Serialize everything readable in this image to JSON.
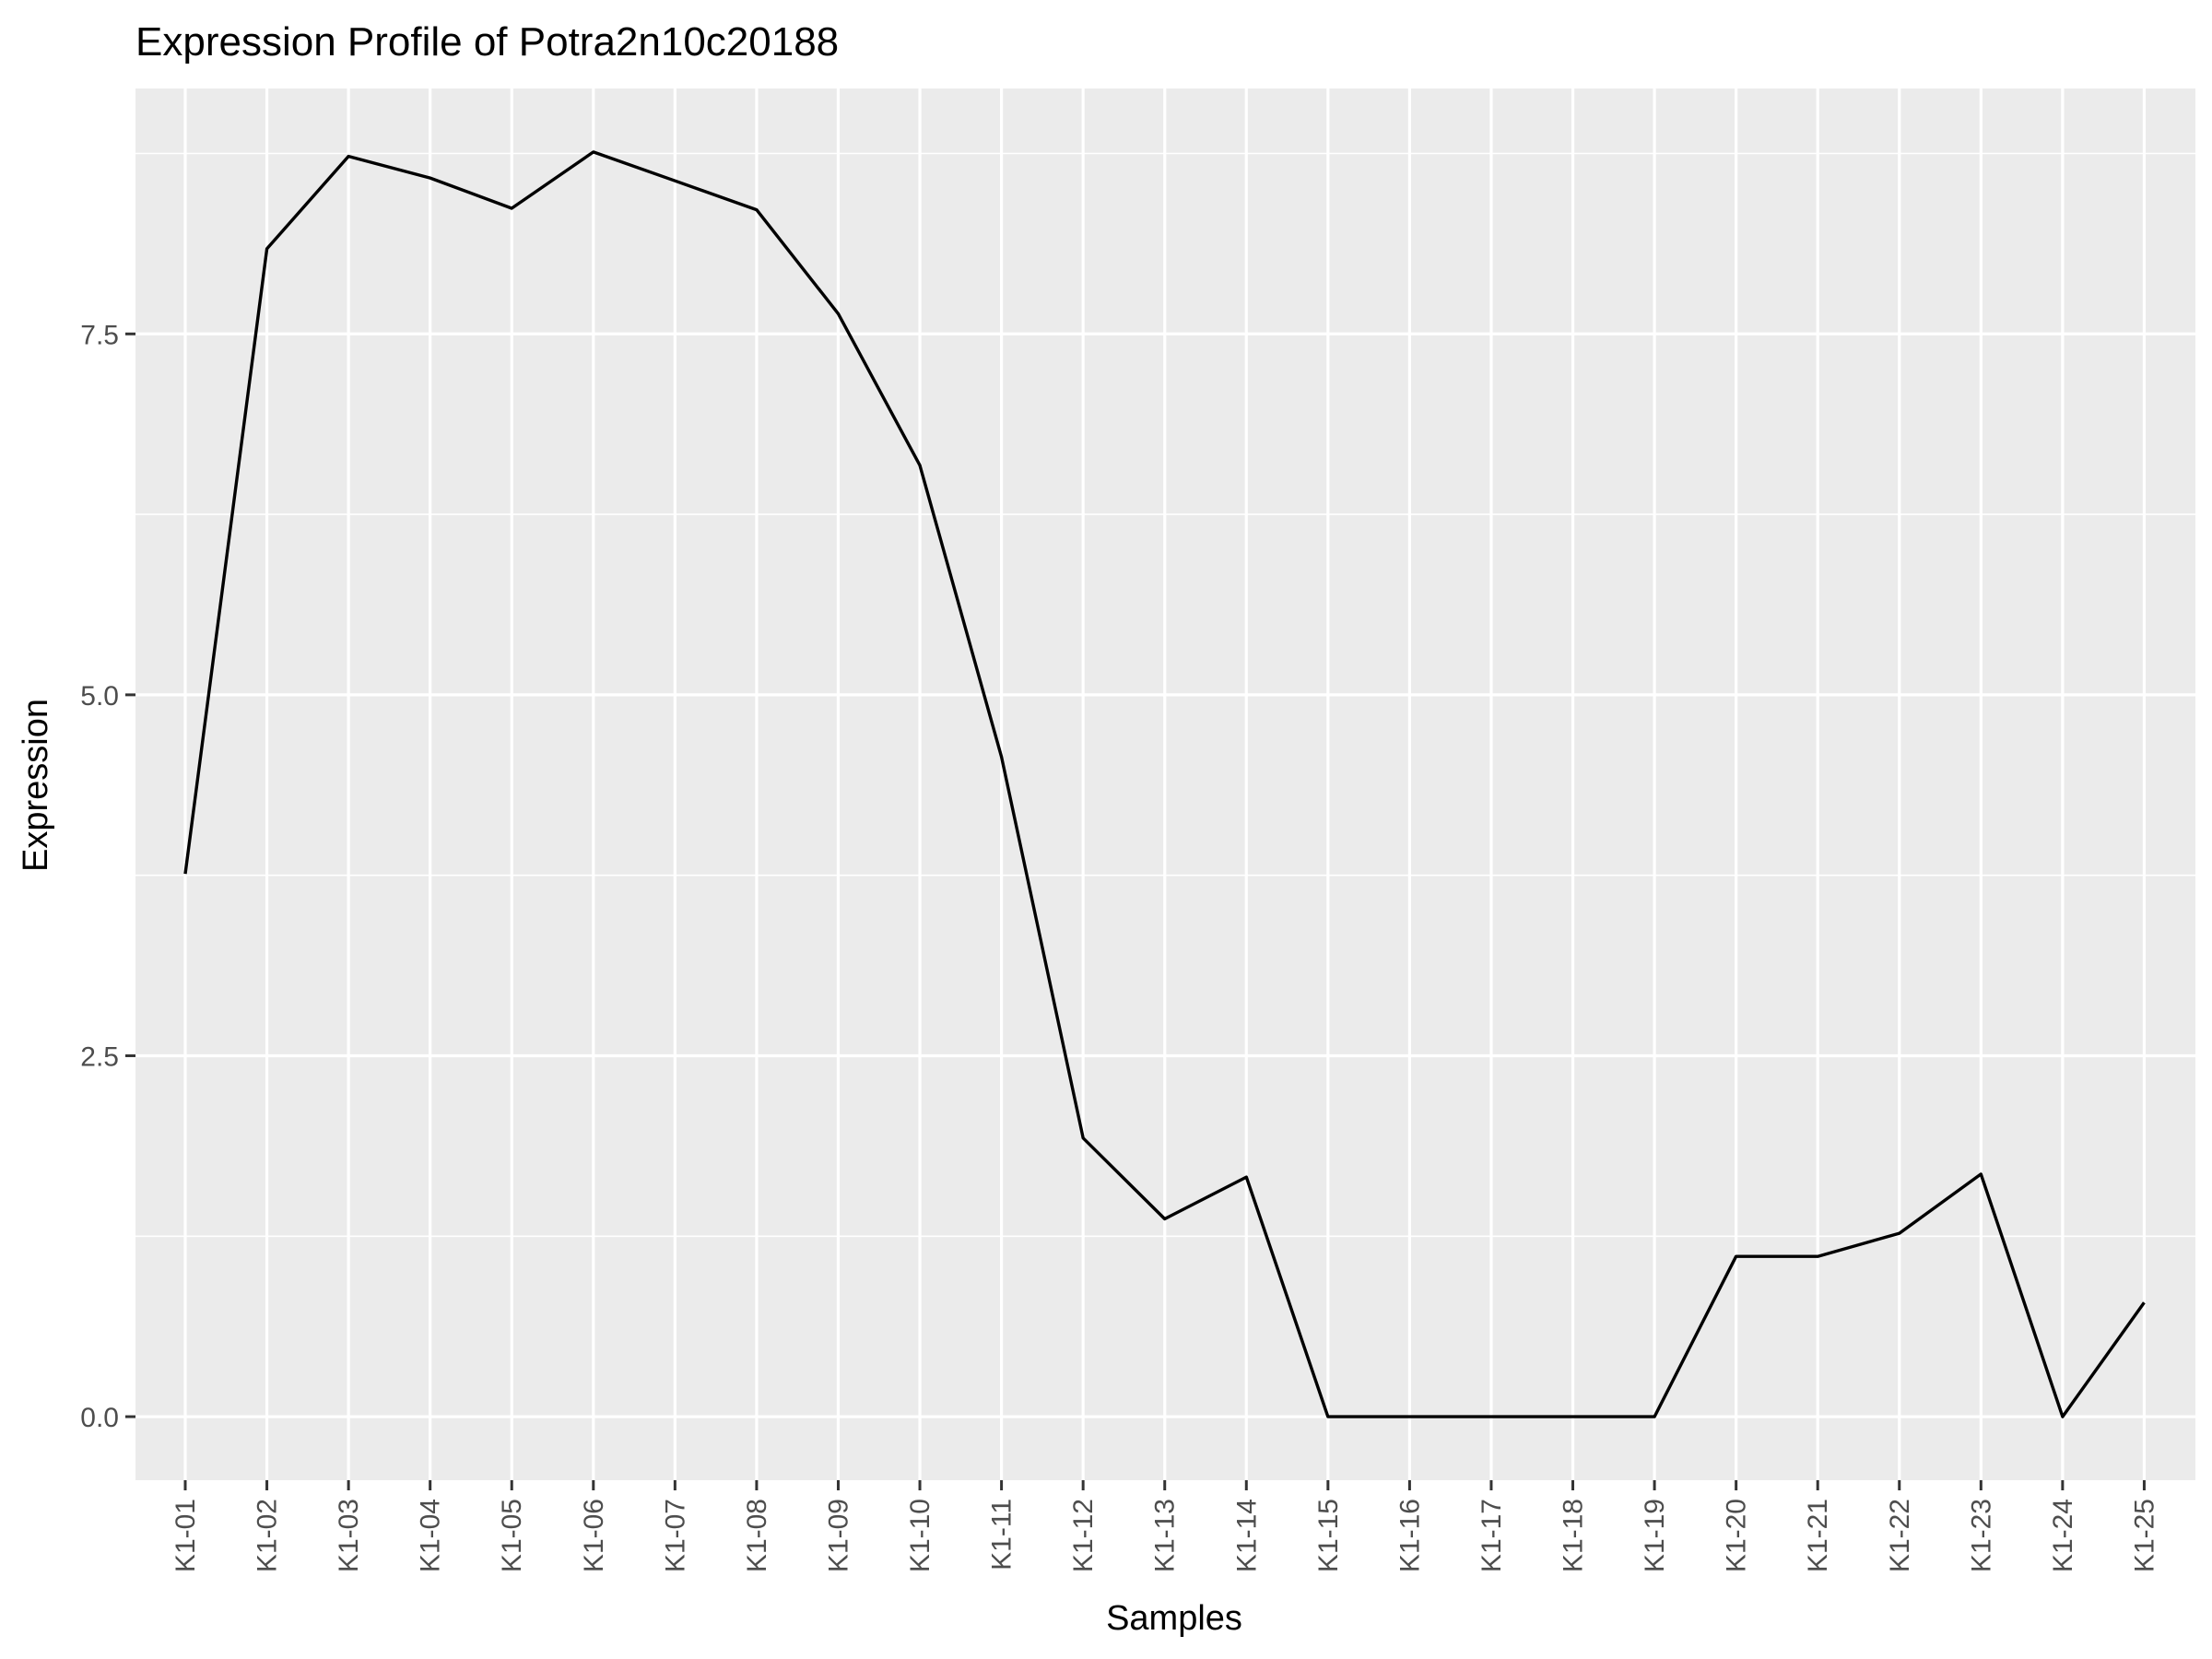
{
  "chart_data": {
    "type": "line",
    "title": "Expression Profile of Potra2n10c20188",
    "xlabel": "Samples",
    "ylabel": "Expression",
    "categories": [
      "K1-01",
      "K1-02",
      "K1-03",
      "K1-04",
      "K1-05",
      "K1-06",
      "K1-07",
      "K1-08",
      "K1-09",
      "K1-10",
      "K1-11",
      "K1-12",
      "K1-13",
      "K1-14",
      "K1-15",
      "K1-16",
      "K1-17",
      "K1-18",
      "K1-19",
      "K1-20",
      "K1-21",
      "K1-22",
      "K1-23",
      "K1-24",
      "K1-25"
    ],
    "series": [
      {
        "values": [
          3.76,
          8.09,
          8.73,
          8.58,
          8.37,
          8.76,
          8.56,
          8.36,
          7.64,
          6.59,
          4.57,
          1.93,
          1.37,
          1.66,
          0.0,
          0.0,
          0.0,
          0.0,
          0.0,
          1.11,
          1.11,
          1.27,
          1.68,
          0.0,
          0.79
        ]
      }
    ],
    "yticks": [
      0.0,
      2.5,
      5.0,
      7.5
    ],
    "ytick_labels": [
      "0.0",
      "2.5",
      "5.0",
      "7.5"
    ],
    "ylim": [
      -0.44,
      9.2
    ],
    "grid": true,
    "colors": {
      "panel": "#ebebeb",
      "grid": "#ffffff",
      "line": "#000000",
      "tick_text": "#4d4d4d",
      "tick_mark": "#333333"
    }
  }
}
